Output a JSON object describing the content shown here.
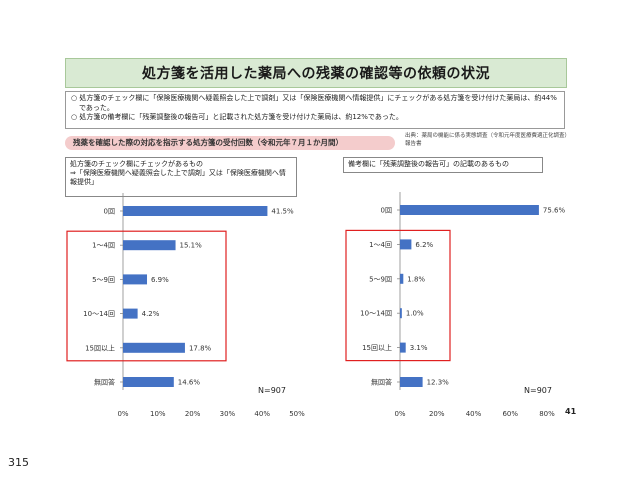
{
  "title": "処方箋を活用した薬局への残薬の確認等の依頼の状況",
  "bullets": [
    "○ 処方箋のチェック欄に「保険医療機関へ疑義照会した上で調剤」又は「保険医療機関へ情報提供」にチェックがある処方箋を受け付けた薬局は、約44%であった。",
    "○ 処方箋の備考欄に「残薬調整後の報告可」と記載された処方箋を受け付けた薬局は、約12%であった。"
  ],
  "subheading": "残薬を確認した際の対応を指示する処方箋の受付回数（令和元年７月１か月間）",
  "source": "出典：薬局の機能に係る実態調査（令和元年度医療費適正化調査）　報告書",
  "left_panel_label": "処方箋のチェック欄にチェックがあるもの\n⇒「保険医療機関へ疑義照会した上で調剤」又は「保険医療機関へ情報提供」",
  "right_panel_label": "備考欄に「残薬調整後の報告可」の記載のあるもの",
  "page_number": "41",
  "footer_number": "315",
  "colors": {
    "bar": "#4472c4",
    "highlight": "#e02020",
    "title_bg": "#d9ead3",
    "subhead_bg": "#f4cccc"
  },
  "chart_data": [
    {
      "type": "bar",
      "orientation": "horizontal",
      "categories": [
        "0回",
        "1〜4回",
        "5〜9回",
        "10〜14回",
        "15回以上",
        "無回答"
      ],
      "values": [
        41.5,
        15.1,
        6.9,
        4.2,
        17.8,
        14.6
      ],
      "value_labels": [
        "41.5%",
        "15.1%",
        "6.9%",
        "4.2%",
        "17.8%",
        "14.6%"
      ],
      "xlim": [
        0,
        50
      ],
      "xticks": [
        "0%",
        "10%",
        "20%",
        "30%",
        "40%",
        "50%"
      ],
      "n_label": "N=907",
      "highlighted_categories": [
        "1〜4回",
        "5〜9回",
        "10〜14回",
        "15回以上"
      ],
      "grid": false
    },
    {
      "type": "bar",
      "orientation": "horizontal",
      "categories": [
        "0回",
        "1〜4回",
        "5〜9回",
        "10〜14回",
        "15回以上",
        "無回答"
      ],
      "values": [
        75.6,
        6.2,
        1.8,
        1.0,
        3.1,
        12.3
      ],
      "value_labels": [
        "75.6%",
        "6.2%",
        "1.8%",
        "1.0%",
        "3.1%",
        "12.3%"
      ],
      "xlim": [
        0,
        80
      ],
      "xticks": [
        "0%",
        "20%",
        "40%",
        "60%",
        "80%"
      ],
      "n_label": "N=907",
      "highlighted_categories": [
        "1〜4回",
        "5〜9回",
        "10〜14回",
        "15回以上"
      ],
      "grid": false
    }
  ]
}
